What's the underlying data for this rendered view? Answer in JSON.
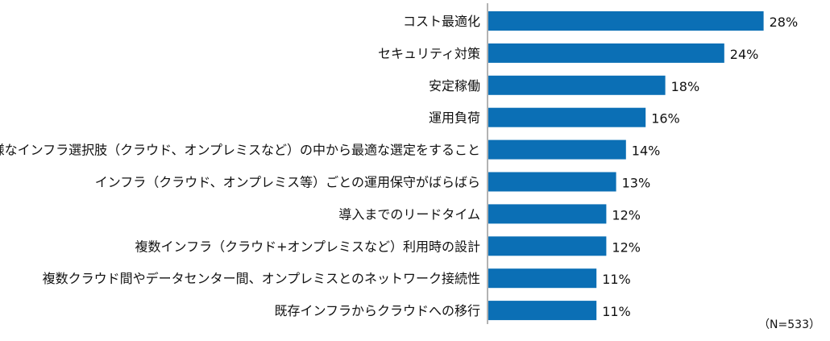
{
  "chart_data": {
    "type": "bar",
    "orientation": "horizontal",
    "categories": [
      "コスト最適化",
      "セキュリティ対策",
      "安定稼働",
      "運用負荷",
      "多様なインフラ選択肢（クラウド、オンプレミスなど）の中から最適な選定をすること",
      "インフラ（クラウド、オンプレミス等）ごとの運用保守がばらばら",
      "導入までのリードタイム",
      "複数インフラ（クラウド+オンプレミスなど）利用時の設計",
      "複数クラウド間やデータセンター間、オンプレミスとのネットワーク接続性",
      "既存インフラからクラウドへの移行"
    ],
    "values": [
      28,
      24,
      18,
      16,
      14,
      13,
      12,
      12,
      11,
      11
    ],
    "value_labels": [
      "28%",
      "24%",
      "18%",
      "16%",
      "14%",
      "13%",
      "12%",
      "12%",
      "11%",
      "11%"
    ],
    "unit": "%",
    "xlim": [
      0,
      30
    ],
    "grid": false,
    "legend": "none",
    "bar_color": "#0b6fb5",
    "axis_color": "#9a9a9a",
    "note": "（N=533）"
  }
}
